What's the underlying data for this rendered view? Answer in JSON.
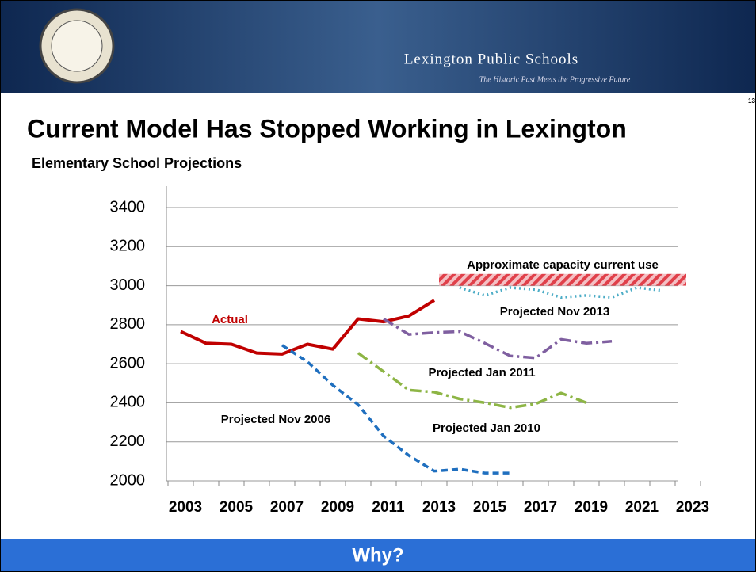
{
  "header": {
    "title": "Lexington Public Schools",
    "tagline": "The Historic Past Meets the Progressive Future",
    "page": "13"
  },
  "slide_title": "Current Model Has Stopped Working in Lexington",
  "footer": "Why?",
  "chart_data": {
    "type": "line",
    "title": "Elementary School Projections",
    "categories": [
      "2003",
      null,
      "2005",
      null,
      "2007",
      null,
      "2009",
      null,
      "2011",
      null,
      "2013",
      null,
      "2015",
      null,
      "2017",
      null,
      "2019",
      null,
      "2021",
      null,
      "2023"
    ],
    "ylim": [
      2000,
      3400
    ],
    "yticks": [
      2000,
      2200,
      2400,
      2600,
      2800,
      3000,
      3200,
      3400
    ],
    "grid": true,
    "capacity": {
      "label": "Approximate capacity current use",
      "range": [
        3000,
        3060
      ],
      "color": "#e0404a"
    },
    "series": [
      {
        "name": "Actual",
        "color": "#c00000",
        "dash": "solid",
        "values": [
          2765,
          2705,
          2700,
          2655,
          2650,
          2700,
          2675,
          2830,
          2815,
          2845,
          2925,
          null,
          null,
          null,
          null,
          null,
          null,
          null,
          null,
          null,
          null
        ]
      },
      {
        "name": "Projected Nov 2006",
        "color": "#1f6fbf",
        "dash": "dash",
        "values": [
          null,
          null,
          null,
          null,
          2695,
          2610,
          2490,
          2390,
          2230,
          2130,
          2050,
          2060,
          2040,
          2040,
          null,
          null,
          null,
          null,
          null,
          null,
          null
        ]
      },
      {
        "name": "Projected Jan 2010",
        "color": "#8db545",
        "dash": "dashdot",
        "values": [
          null,
          null,
          null,
          null,
          null,
          null,
          null,
          2655,
          2560,
          2465,
          2455,
          2420,
          2400,
          2375,
          2395,
          2450,
          2400,
          null,
          null,
          null,
          null
        ]
      },
      {
        "name": "Projected Jan 2011",
        "color": "#7f5fa0",
        "dash": "dashdot",
        "values": [
          null,
          null,
          null,
          null,
          null,
          null,
          null,
          null,
          2830,
          2750,
          2760,
          2765,
          2705,
          2640,
          2630,
          2725,
          2705,
          2715,
          null,
          null,
          null
        ]
      },
      {
        "name": "Projected Nov 2013",
        "color": "#4bacc6",
        "dash": "dot",
        "values": [
          null,
          null,
          null,
          null,
          null,
          null,
          null,
          null,
          null,
          null,
          null,
          2990,
          2950,
          2990,
          2980,
          2940,
          2950,
          2940,
          2990,
          2975,
          null
        ]
      }
    ]
  }
}
